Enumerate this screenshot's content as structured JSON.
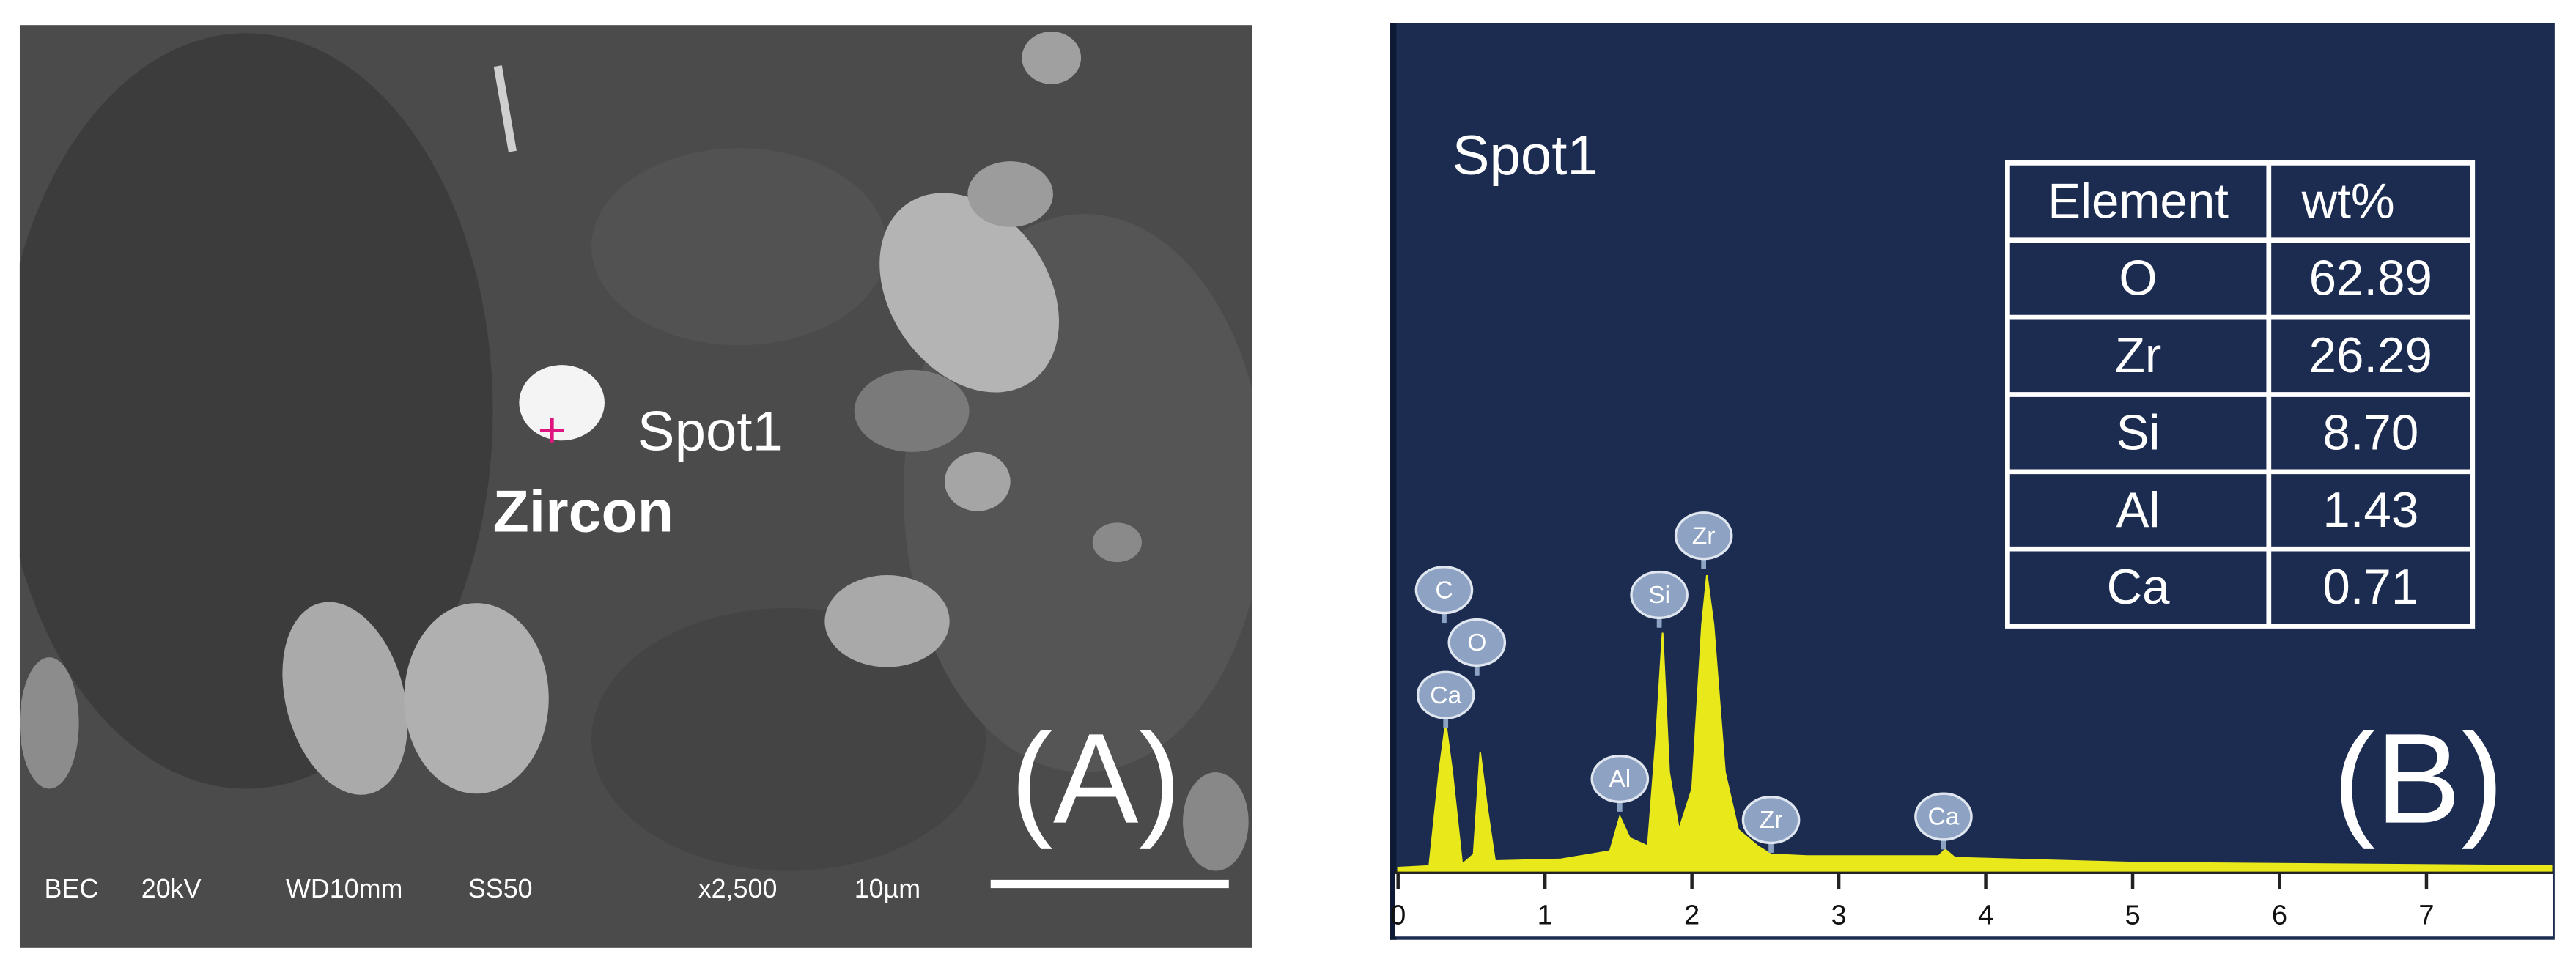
{
  "panel_a": {
    "label": "(A)",
    "spot": "Spot1",
    "mineral": "Zircon",
    "marker": "+",
    "info": [
      "BEC",
      "20kV",
      "WD10mm",
      "SS50",
      "x2,500",
      "10µm"
    ]
  },
  "panel_b": {
    "label": "(B)",
    "title": "Spot1",
    "table": {
      "header": [
        "Element",
        "wt%"
      ],
      "rows": [
        [
          "O",
          "62.89"
        ],
        [
          "Zr",
          "26.29"
        ],
        [
          "Si",
          "8.70"
        ],
        [
          "Al",
          "1.43"
        ],
        [
          "Ca",
          "0.71"
        ]
      ]
    },
    "peak_labels": [
      "C",
      "O",
      "Ca",
      "Al",
      "Si",
      "Zr",
      "Zr",
      "Ca"
    ],
    "xlim": [
      0,
      7.85
    ],
    "xticks": [
      0,
      1,
      2,
      3,
      4,
      5,
      6,
      7
    ]
  }
}
